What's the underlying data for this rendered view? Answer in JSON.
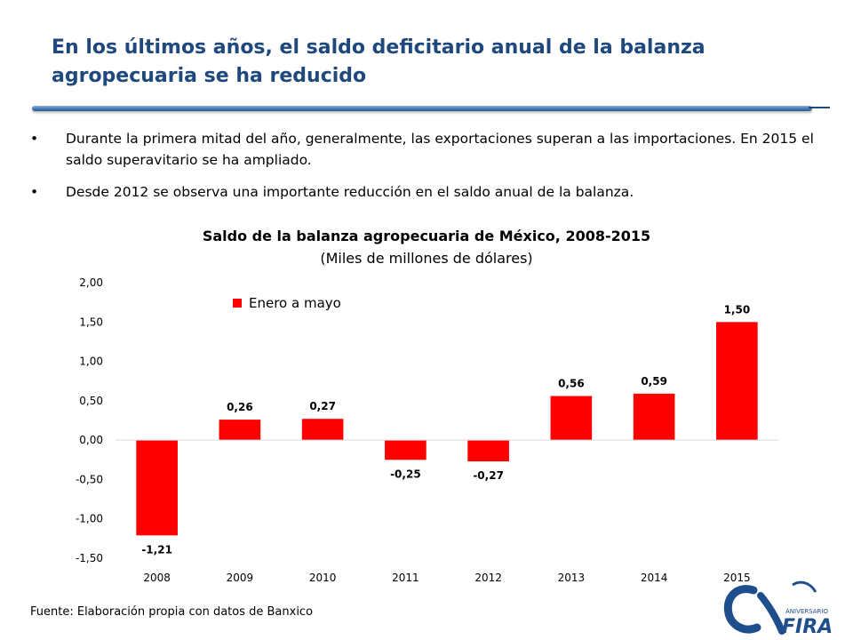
{
  "slide": {
    "title": "En los últimos años, el saldo deficitario anual de la balanza agropecuaria se ha reducido",
    "bullets": [
      "Durante la primera mitad del año, generalmente, las exportaciones superan a las importaciones. En 2015 el saldo superavitario se ha ampliado.",
      "Desde 2012 se observa una importante reducción en el saldo anual de la balanza."
    ],
    "bullet_symbol": "•",
    "source": "Fuente: Elaboración propia con datos de Banxico"
  },
  "logo": {
    "text": "FIRA",
    "subtext": "ANIVERSARIO",
    "colors": {
      "primary": "#1f4e8c",
      "accent": "#2c5a90"
    }
  },
  "chart_data": {
    "type": "bar",
    "title": "Saldo de la balanza agropecuaria de México, 2008-2015",
    "subtitle": "(Miles de millones de dólares)",
    "categories": [
      "2008",
      "2009",
      "2010",
      "2011",
      "2012",
      "2013",
      "2014",
      "2015"
    ],
    "series": [
      {
        "name": "Enero a mayo",
        "values": [
          -1.21,
          0.26,
          0.27,
          -0.25,
          -0.27,
          0.56,
          0.59,
          1.5
        ],
        "labels": [
          "-1,21",
          "0,26",
          "0,27",
          "-0,25",
          "-0,27",
          "0,56",
          "0,59",
          "1,50"
        ],
        "color": "#ff0000"
      }
    ],
    "ylim": [
      -1.5,
      2.0
    ],
    "yticks": [
      2.0,
      1.5,
      1.0,
      0.5,
      0.0,
      -0.5,
      -1.0,
      -1.5
    ],
    "ytick_labels": [
      "2,00",
      "1,50",
      "1,00",
      "0,50",
      "0,00",
      "-0,50",
      "-1,00",
      "-1,50"
    ],
    "grid": false,
    "legend": "top-left",
    "xlabel": "",
    "ylabel": ""
  }
}
